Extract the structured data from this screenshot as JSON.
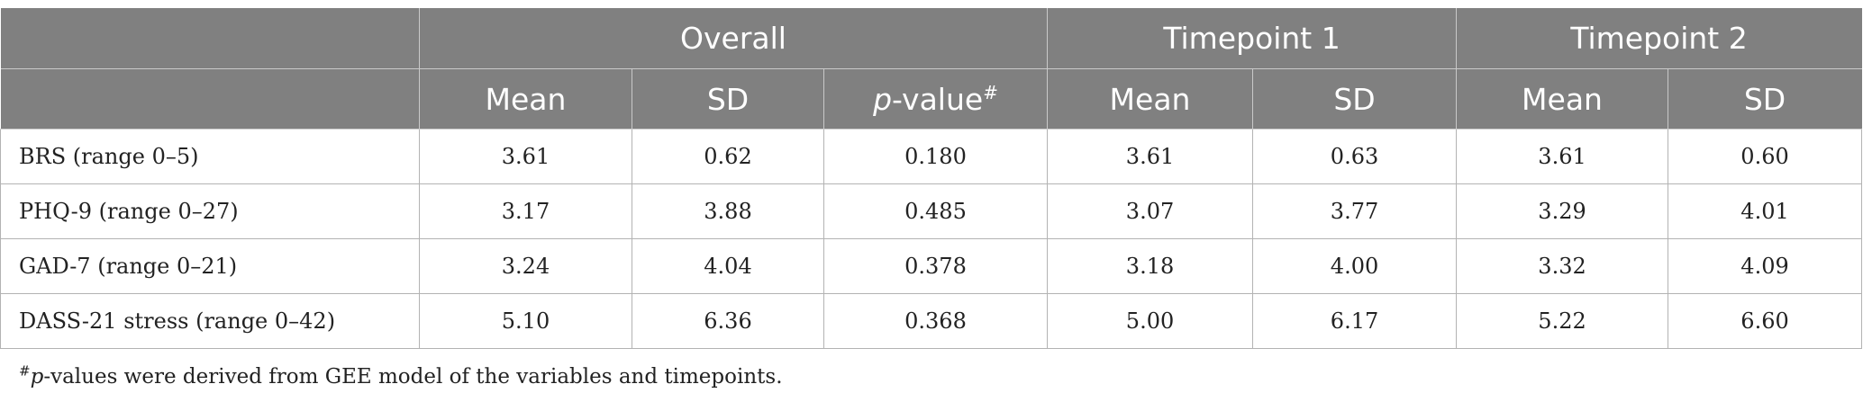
{
  "table": {
    "group_headers": [
      {
        "label": "",
        "colspan": 1
      },
      {
        "label": "Overall",
        "colspan": 3
      },
      {
        "label": "Timepoint 1",
        "colspan": 2
      },
      {
        "label": "Timepoint 2",
        "colspan": 2
      }
    ],
    "sub_headers": {
      "overall_mean": "Mean",
      "overall_sd": "SD",
      "p_value_italic": "p",
      "p_value_rest": "-value",
      "p_value_mark": "#",
      "t1_mean": "Mean",
      "t1_sd": "SD",
      "t2_mean": "Mean",
      "t2_sd": "SD"
    },
    "rows": [
      {
        "label": "BRS (range 0–5)",
        "overall_mean": "3.61",
        "overall_sd": "0.62",
        "p_value": "0.180",
        "t1_mean": "3.61",
        "t1_sd": "0.63",
        "t2_mean": "3.61",
        "t2_sd": "0.60"
      },
      {
        "label": "PHQ-9 (range 0–27)",
        "overall_mean": "3.17",
        "overall_sd": "3.88",
        "p_value": "0.485",
        "t1_mean": "3.07",
        "t1_sd": "3.77",
        "t2_mean": "3.29",
        "t2_sd": "4.01"
      },
      {
        "label": "GAD-7 (range 0–21)",
        "overall_mean": "3.24",
        "overall_sd": "4.04",
        "p_value": "0.378",
        "t1_mean": "3.18",
        "t1_sd": "4.00",
        "t2_mean": "3.32",
        "t2_sd": "4.09"
      },
      {
        "label": "DASS-21 stress (range 0–42)",
        "overall_mean": "5.10",
        "overall_sd": "6.36",
        "p_value": "0.368",
        "t1_mean": "5.00",
        "t1_sd": "6.17",
        "t2_mean": "5.22",
        "t2_sd": "6.60"
      }
    ]
  },
  "footnote": {
    "mark": "#",
    "italic": "p",
    "text": "-values were derived from GEE model of the variables and timepoints."
  },
  "colors": {
    "header_background": "#808080",
    "header_text": "#ffffff",
    "body_text": "#222222"
  }
}
